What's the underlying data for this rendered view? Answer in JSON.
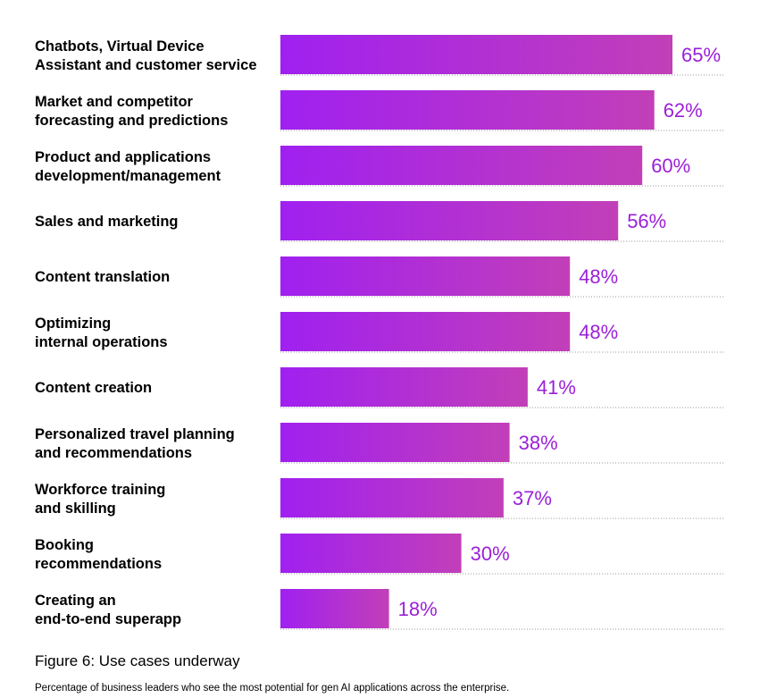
{
  "chart_data": {
    "type": "bar",
    "orientation": "horizontal",
    "categories": [
      [
        "Chatbots, Virtual Device",
        "Assistant and customer service"
      ],
      [
        "Market and competitor",
        "forecasting and predictions"
      ],
      [
        "Product and applications",
        "development/management"
      ],
      [
        "Sales and marketing"
      ],
      [
        "Content translation"
      ],
      [
        "Optimizing",
        "internal operations"
      ],
      [
        "Content creation"
      ],
      [
        "Personalized travel planning",
        "and recommendations"
      ],
      [
        "Workforce training",
        "and skilling"
      ],
      [
        "Booking",
        "recommendations"
      ],
      [
        "Creating an",
        "end-to-end superapp"
      ]
    ],
    "values": [
      65,
      62,
      60,
      56,
      48,
      48,
      41,
      38,
      37,
      30,
      18
    ],
    "value_labels": [
      "65%",
      "62%",
      "60%",
      "56%",
      "48%",
      "48%",
      "41%",
      "38%",
      "37%",
      "30%",
      "18%"
    ],
    "unit": "%",
    "xlim": [
      0,
      65
    ],
    "title": "",
    "xlabel": "",
    "ylabel": "",
    "grid": false,
    "colors": {
      "bar_start": "#a020f0",
      "bar_end": "#c23fb8",
      "value_text": "#9b1fd9",
      "leader_line": "#999999"
    }
  },
  "caption": {
    "figure_title": "Figure 6: Use cases underway",
    "description": "Percentage of business leaders who see the most potential for gen AI applications across the enterprise."
  }
}
